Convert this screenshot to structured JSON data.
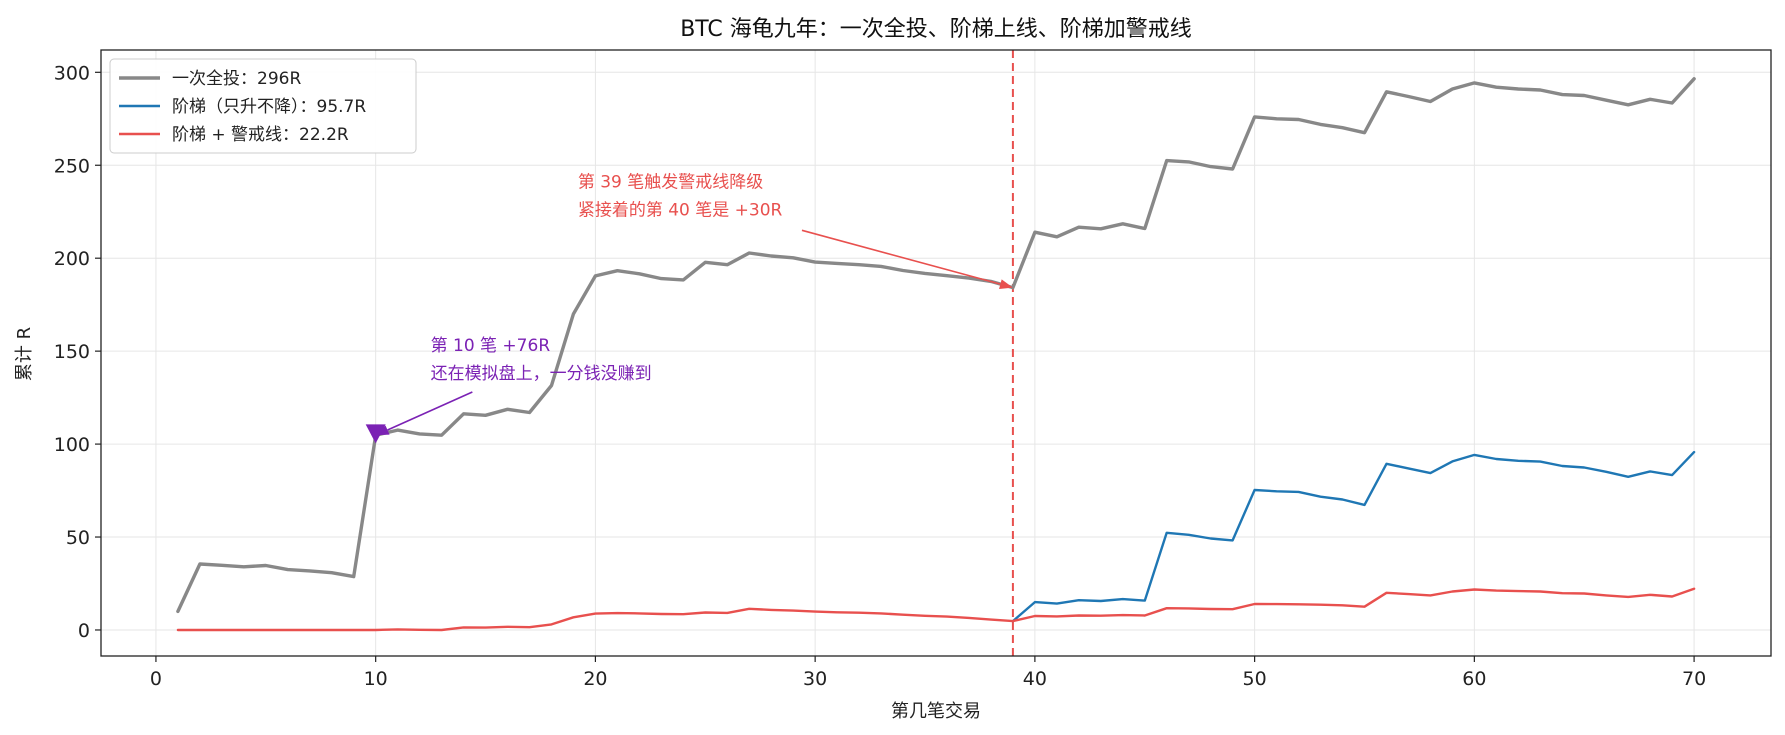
{
  "chart_data": {
    "type": "line",
    "title": "BTC 海龟九年：一次全投、阶梯上线、阶梯加警戒线",
    "xlabel": "第几笔交易",
    "ylabel": "累计 R",
    "xlim": [
      -2.5,
      73.5
    ],
    "ylim": [
      -14,
      312
    ],
    "xticks": [
      0,
      10,
      20,
      30,
      40,
      50,
      60,
      70
    ],
    "yticks": [
      0,
      50,
      100,
      150,
      200,
      250,
      300
    ],
    "grid": true,
    "legend_position": "top-left",
    "x": [
      1,
      2,
      3,
      4,
      5,
      6,
      7,
      8,
      9,
      10,
      11,
      12,
      13,
      14,
      15,
      16,
      17,
      18,
      19,
      20,
      21,
      22,
      23,
      24,
      25,
      26,
      27,
      28,
      29,
      30,
      31,
      32,
      33,
      34,
      35,
      36,
      37,
      38,
      39,
      40,
      41,
      42,
      43,
      44,
      45,
      46,
      47,
      48,
      49,
      50,
      51,
      52,
      53,
      54,
      55,
      56,
      57,
      58,
      59,
      60,
      61,
      62,
      63,
      64,
      65,
      66,
      67,
      68,
      69,
      70
    ],
    "series": [
      {
        "name": "一次全投：296R",
        "color": "#888888",
        "values": [
          10,
          35.5,
          34.8,
          34,
          34.7,
          32.5,
          31.8,
          30.8,
          28.7,
          104.7,
          107.5,
          105.5,
          104.8,
          116.3,
          115.5,
          118.7,
          117,
          131.5,
          170,
          190.5,
          193.3,
          191.6,
          189,
          188.3,
          197.8,
          196.5,
          202.8,
          201.2,
          200.2,
          197.9,
          197.2,
          196.5,
          195.6,
          193.4,
          191.8,
          190.6,
          189.3,
          187.5,
          184.2,
          214,
          211.5,
          216.7,
          215.8,
          218.5,
          216,
          252.5,
          251.8,
          249.3,
          248,
          276,
          275,
          274.6,
          272,
          270.2,
          267.5,
          289.5,
          287,
          284.3,
          291,
          294.3,
          292,
          291,
          290.5,
          288,
          287.5,
          285,
          282.5,
          285.5,
          283.5,
          296.5
        ]
      },
      {
        "name": "阶梯（只升不降）：95.7R",
        "color": "#1f77b4",
        "values": [
          null,
          null,
          null,
          null,
          null,
          null,
          null,
          null,
          null,
          null,
          null,
          null,
          null,
          null,
          null,
          null,
          null,
          null,
          null,
          null,
          null,
          null,
          null,
          null,
          null,
          null,
          null,
          null,
          null,
          null,
          null,
          null,
          null,
          null,
          null,
          null,
          null,
          null,
          4.8,
          15,
          14.2,
          16,
          15.6,
          16.6,
          15.8,
          52.3,
          51.2,
          49.2,
          48.2,
          75.3,
          74.6,
          74.3,
          71.7,
          70.2,
          67.3,
          89.4,
          86.9,
          84.4,
          90.7,
          94.2,
          92,
          91,
          90.6,
          88.2,
          87.4,
          85.1,
          82.4,
          85.3,
          83.3,
          95.7
        ]
      },
      {
        "name": "阶梯 + 警戒线：22.2R",
        "color": "#e8504e",
        "values": [
          0,
          0,
          0,
          0,
          0,
          0,
          0,
          0,
          0,
          0,
          0.3,
          0.1,
          0,
          1.4,
          1.3,
          1.7,
          1.5,
          3,
          6.8,
          8.8,
          9.1,
          8.9,
          8.6,
          8.5,
          9.4,
          9.2,
          11.4,
          10.8,
          10.4,
          9.9,
          9.5,
          9.3,
          8.9,
          8.2,
          7.6,
          7.2,
          6.5,
          5.6,
          4.8,
          7.5,
          7.3,
          7.8,
          7.7,
          8,
          7.8,
          11.7,
          11.6,
          11.3,
          11.2,
          14,
          13.9,
          13.8,
          13.6,
          13.3,
          12.5,
          20,
          19.3,
          18.6,
          20.7,
          21.8,
          21.2,
          20.9,
          20.7,
          19.8,
          19.6,
          18.6,
          17.8,
          18.9,
          18,
          22.2
        ]
      }
    ],
    "vline": {
      "x": 39,
      "color": "#e8504e",
      "style": "dashed"
    },
    "annotations": [
      {
        "lines": [
          "第 10 笔 +76R",
          "还在模拟盘上，一分钱没赚到"
        ],
        "color": "#7b22b4",
        "target": [
          10,
          104.7
        ],
        "text_at": [
          12.5,
          150
        ],
        "arrow_from": [
          14.4,
          128
        ],
        "marker": "down-triangle"
      },
      {
        "lines": [
          "第 39 笔触发警戒线降级",
          "紧接着的第 40 笔是 +30R"
        ],
        "color": "#e8504e",
        "target": [
          39,
          184.2
        ],
        "text_at": [
          19.2,
          238
        ],
        "arrow_from": [
          29.4,
          215
        ]
      }
    ]
  }
}
